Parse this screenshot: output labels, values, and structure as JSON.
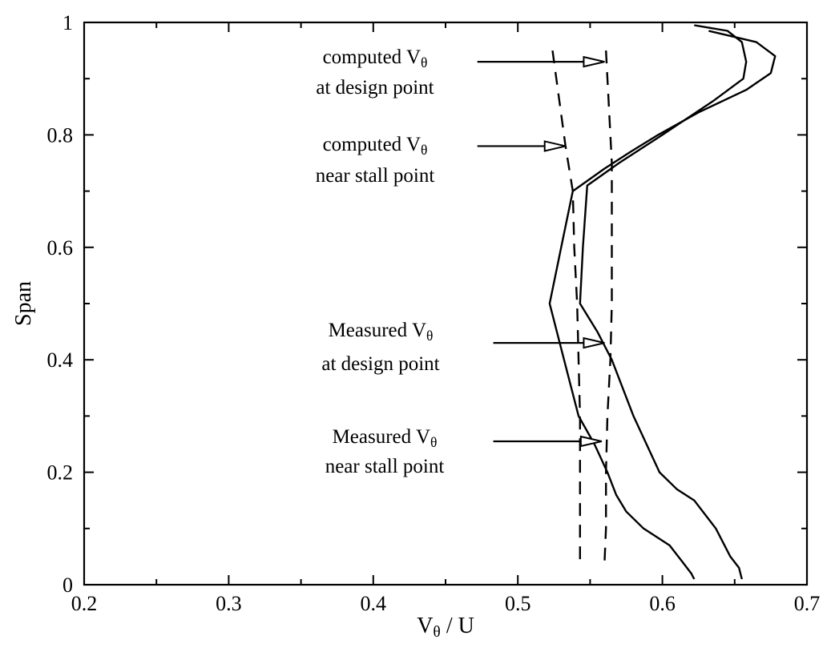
{
  "chart_data": {
    "type": "line",
    "title": "",
    "xlabel": {
      "main": "V",
      "sub": "θ",
      "rest": " / U"
    },
    "ylabel": "Span",
    "xlim": [
      0.2,
      0.7
    ],
    "ylim": [
      0,
      1
    ],
    "xticks": [
      "0.2",
      "0.3",
      "0.4",
      "0.5",
      "0.6",
      "0.7"
    ],
    "yticks": [
      "0",
      "0.2",
      "0.4",
      "0.6",
      "0.8",
      "1"
    ],
    "legend": "none",
    "series": [
      {
        "style": "dashed",
        "points": [
          [
            0.524,
            0.95
          ],
          [
            0.533,
            0.78
          ],
          [
            0.538,
            0.7
          ],
          [
            0.539,
            0.6
          ],
          [
            0.541,
            0.5
          ],
          [
            0.542,
            0.4
          ],
          [
            0.543,
            0.3
          ],
          [
            0.543,
            0.2
          ],
          [
            0.543,
            0.1
          ],
          [
            0.543,
            0.04
          ]
        ]
      },
      {
        "style": "dashed",
        "points": [
          [
            0.561,
            0.95
          ],
          [
            0.565,
            0.75
          ],
          [
            0.565,
            0.6
          ],
          [
            0.565,
            0.5
          ],
          [
            0.564,
            0.4
          ],
          [
            0.562,
            0.3
          ],
          [
            0.561,
            0.2
          ],
          [
            0.561,
            0.1
          ],
          [
            0.56,
            0.04
          ]
        ]
      },
      {
        "style": "solid",
        "points": [
          [
            0.622,
            0.995
          ],
          [
            0.645,
            0.985
          ],
          [
            0.655,
            0.965
          ],
          [
            0.658,
            0.93
          ],
          [
            0.656,
            0.9
          ],
          [
            0.635,
            0.86
          ],
          [
            0.6,
            0.8
          ],
          [
            0.57,
            0.75
          ],
          [
            0.548,
            0.71
          ],
          [
            0.545,
            0.6
          ],
          [
            0.543,
            0.5
          ],
          [
            0.555,
            0.45
          ],
          [
            0.565,
            0.4
          ],
          [
            0.58,
            0.3
          ],
          [
            0.598,
            0.2
          ],
          [
            0.61,
            0.17
          ],
          [
            0.622,
            0.15
          ],
          [
            0.637,
            0.1
          ],
          [
            0.647,
            0.05
          ],
          [
            0.653,
            0.03
          ],
          [
            0.655,
            0.01
          ]
        ]
      },
      {
        "style": "solid",
        "points": [
          [
            0.632,
            0.985
          ],
          [
            0.665,
            0.965
          ],
          [
            0.678,
            0.94
          ],
          [
            0.675,
            0.91
          ],
          [
            0.658,
            0.88
          ],
          [
            0.625,
            0.84
          ],
          [
            0.597,
            0.8
          ],
          [
            0.578,
            0.77
          ],
          [
            0.56,
            0.74
          ],
          [
            0.538,
            0.7
          ],
          [
            0.53,
            0.6
          ],
          [
            0.522,
            0.5
          ],
          [
            0.532,
            0.4
          ],
          [
            0.542,
            0.3
          ],
          [
            0.553,
            0.25
          ],
          [
            0.562,
            0.2
          ],
          [
            0.568,
            0.16
          ],
          [
            0.575,
            0.13
          ],
          [
            0.587,
            0.1
          ],
          [
            0.605,
            0.07
          ],
          [
            0.614,
            0.04
          ],
          [
            0.62,
            0.02
          ],
          [
            0.622,
            0.01
          ]
        ]
      }
    ],
    "annotations": [
      {
        "lines": [
          {
            "main": "computed V",
            "sub": "θ"
          },
          {
            "main": "at design point",
            "sub": ""
          }
        ],
        "arrow_from": [
          0.472,
          0.93
        ],
        "arrow_to": [
          0.56,
          0.93
        ]
      },
      {
        "lines": [
          {
            "main": "computed V",
            "sub": "θ"
          },
          {
            "main": "near stall point",
            "sub": ""
          }
        ],
        "arrow_from": [
          0.472,
          0.78
        ],
        "arrow_to": [
          0.533,
          0.78
        ]
      },
      {
        "lines": [
          {
            "main": "Measured V",
            "sub": "θ"
          },
          {
            "main": "at design point",
            "sub": ""
          }
        ],
        "arrow_from": [
          0.483,
          0.43
        ],
        "arrow_to": [
          0.56,
          0.43
        ]
      },
      {
        "lines": [
          {
            "main": "Measured V",
            "sub": "θ"
          },
          {
            "main": "near stall point",
            "sub": ""
          }
        ],
        "arrow_from": [
          0.483,
          0.255
        ],
        "arrow_to": [
          0.558,
          0.255
        ]
      }
    ]
  }
}
